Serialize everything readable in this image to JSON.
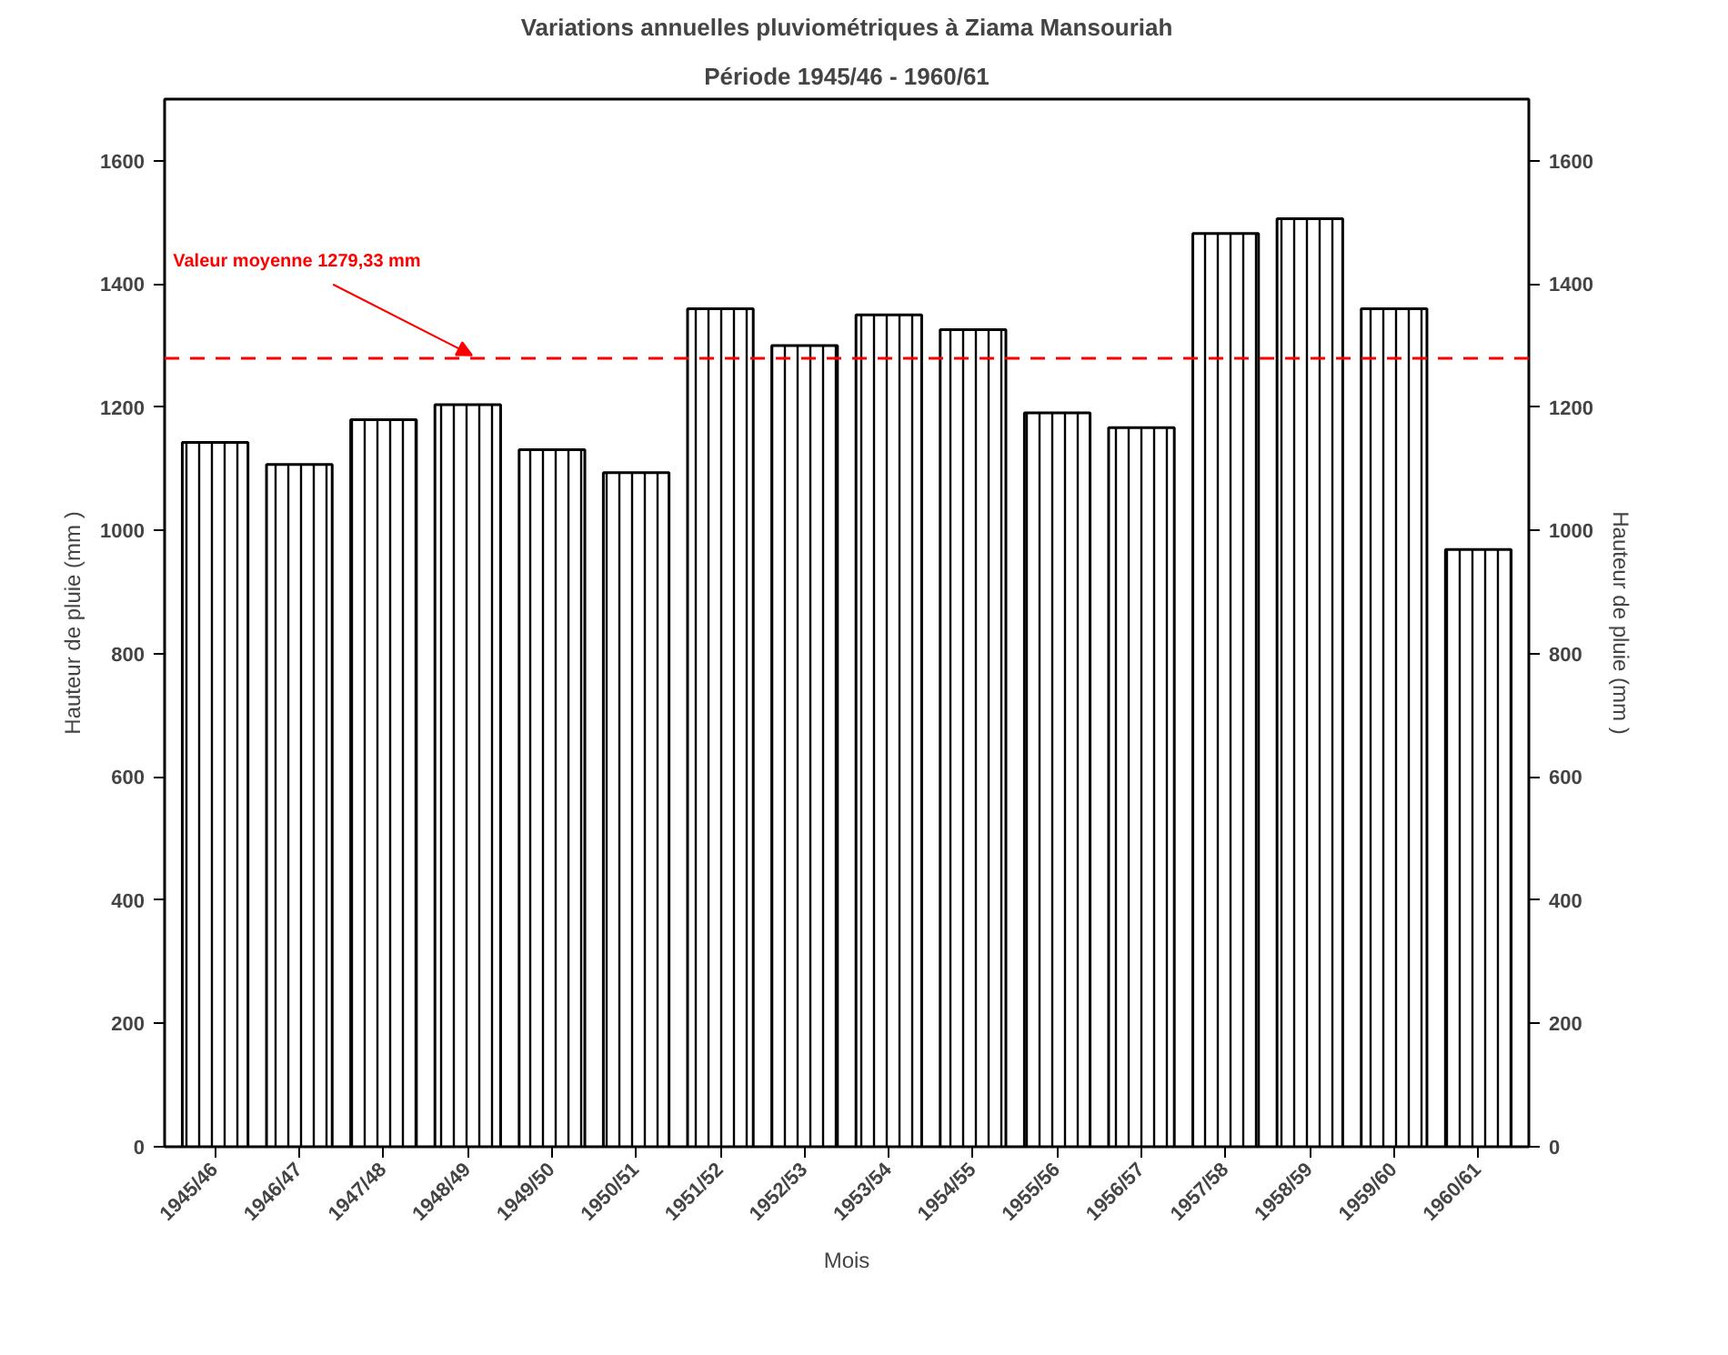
{
  "chart_data": {
    "type": "bar",
    "title": "Variations annuelles pluviométriques à Ziama Mansouriah",
    "subtitle": "Période 1945/46 - 1960/61",
    "xlabel": "Mois",
    "ylabel": "Hauteur de pluie (mm )",
    "y2label": "Hauteur de pluie (mm )",
    "categories": [
      "1945/46",
      "1946/47",
      "1947/48",
      "1948/49",
      "1949/50",
      "1950/51",
      "1951/52",
      "1952/53",
      "1953/54",
      "1954/55",
      "1955/56",
      "1956/57",
      "1957/58",
      "1958/59",
      "1959/60",
      "1960/61"
    ],
    "series": [
      {
        "color": "#000000",
        "values": [
          1143,
          1107,
          1180,
          1204,
          1131,
          1094,
          1360,
          1300,
          1350,
          1326,
          1191,
          1167,
          1482,
          1506,
          1360,
          969
        ]
      }
    ],
    "ylim": [
      0,
      1700
    ],
    "yticks": [
      0,
      200,
      400,
      600,
      800,
      1000,
      1200,
      1400,
      1600
    ],
    "y2lim": [
      0,
      1700
    ],
    "y2ticks": [
      0,
      200,
      400,
      600,
      800,
      1000,
      1200,
      1400,
      1600
    ],
    "ref_lines": [
      {
        "axis": "y",
        "value": 1279.33,
        "label": "Valeur moyenne 1279,33 mm",
        "color": "#ff0000",
        "line_style": "dashed"
      }
    ],
    "grid": false
  }
}
